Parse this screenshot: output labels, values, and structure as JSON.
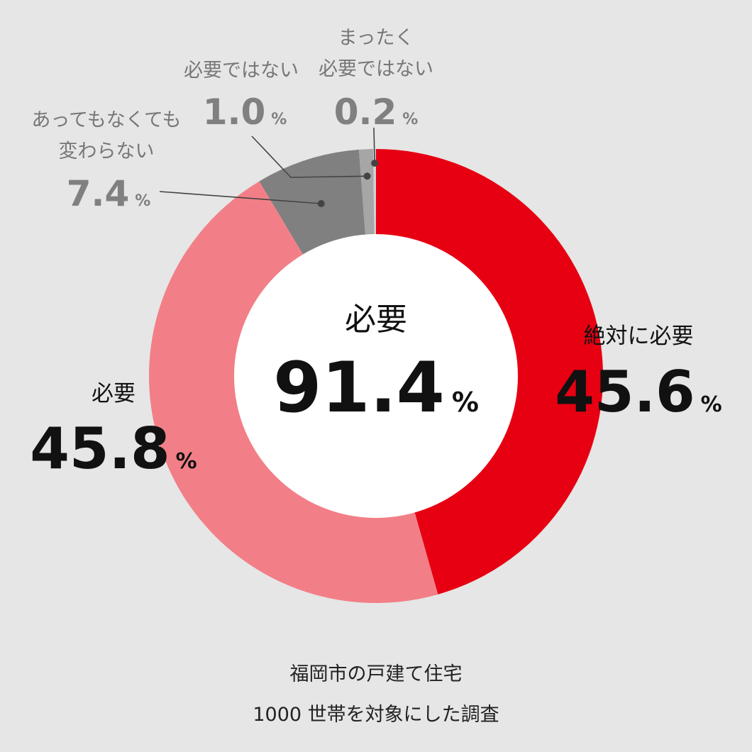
{
  "chart_data": {
    "type": "pie",
    "categories": [
      "絶対に必要",
      "必要",
      "あってもなくても変わらない",
      "必要ではない",
      "まったく必要ではない"
    ],
    "values": [
      45.6,
      45.8,
      7.4,
      1.0,
      0.2
    ],
    "colors": [
      "#e60012",
      "#f27f87",
      "#808080",
      "#a6a6a6",
      "#d0d0d0"
    ],
    "unit": "%",
    "center": {
      "label": "必要",
      "value": "91.4",
      "unit": "%"
    },
    "labels": [
      {
        "lines": [
          "絶対に必要"
        ],
        "value": "45.6",
        "unit": "%",
        "style": "major"
      },
      {
        "lines": [
          "必要"
        ],
        "value": "45.8",
        "unit": "%",
        "style": "major"
      },
      {
        "lines": [
          "あってもなくても",
          "変わらない"
        ],
        "value": "7.4",
        "unit": "%",
        "style": "minor"
      },
      {
        "lines": [
          "必要ではない"
        ],
        "value": "1.0",
        "unit": "%",
        "style": "minor"
      },
      {
        "lines": [
          "まったく",
          "必要ではない"
        ],
        "value": "0.2",
        "unit": "%",
        "style": "minor"
      }
    ]
  },
  "caption": {
    "line1": "福岡市の戸建て住宅",
    "line2": "1000 世帯を対象にした調査"
  }
}
